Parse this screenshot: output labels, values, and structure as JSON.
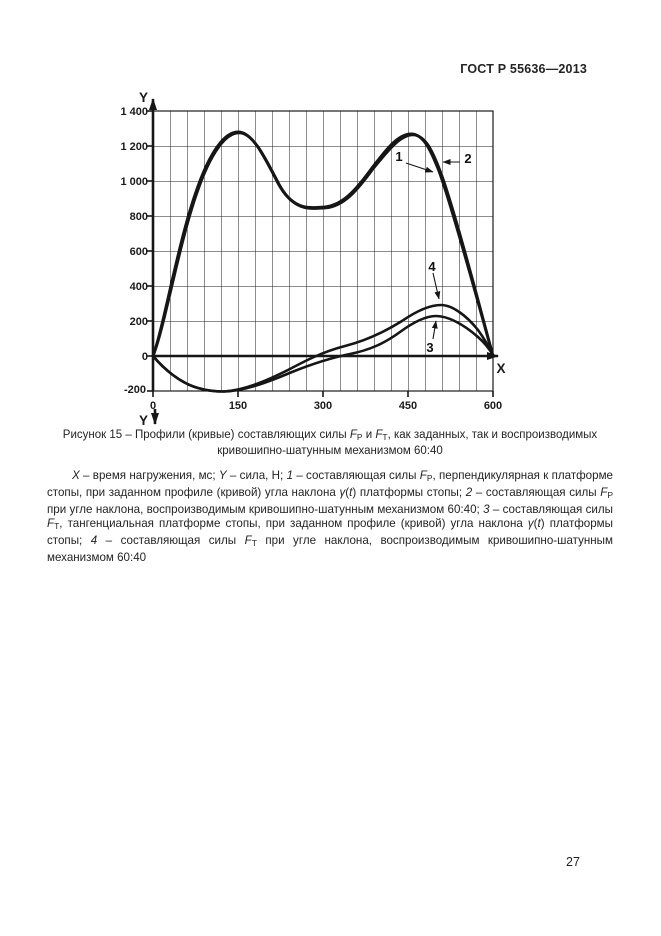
{
  "page": {
    "header": "ГОСТ Р 55636—2013",
    "page_number": "27"
  },
  "figure": {
    "y_label_top": "Y",
    "y_label_bottom": "Y",
    "x_label": "X",
    "y_ticks": [
      "1 400",
      "1 200",
      "1 000",
      "800",
      "600",
      "400",
      "200",
      "0",
      "-200"
    ],
    "x_ticks": [
      "0",
      "150",
      "300",
      "450",
      "600"
    ],
    "callouts": {
      "c1": "1",
      "c2": "2",
      "c3": "3",
      "c4": "4"
    }
  },
  "caption": [
    {
      "t": "Рисунок 15 – Профили (кривые)  составляющих силы "
    },
    {
      "t": "F",
      "i": true
    },
    {
      "t": "P",
      "sub": true
    },
    {
      "t": " и "
    },
    {
      "t": "F",
      "i": true
    },
    {
      "t": "T",
      "sub": true
    },
    {
      "t": ", как заданных, так и воспроизводимых"
    },
    {
      "br": true
    },
    {
      "t": "кривошипно-шатунным механизмом 60:40"
    }
  ],
  "legend": [
    {
      "t": "X",
      "i": true
    },
    {
      "t": " – время нагружения, мс; "
    },
    {
      "t": "Y",
      "i": true
    },
    {
      "t": " – сила, Н; "
    },
    {
      "t": "1",
      "i": true
    },
    {
      "t": " – составляющая силы "
    },
    {
      "t": "F",
      "i": true
    },
    {
      "t": "P",
      "sub": true
    },
    {
      "t": ", перпендикулярная к платформе стопы, при заданном профиле (кривой) угла наклона "
    },
    {
      "t": "γ",
      "i": true
    },
    {
      "t": "("
    },
    {
      "t": "t",
      "i": true
    },
    {
      "t": ") платформы стопы; "
    },
    {
      "t": "2",
      "i": true
    },
    {
      "t": " – составляющая силы "
    },
    {
      "t": "F",
      "i": true
    },
    {
      "t": "P",
      "sub": true
    },
    {
      "t": " при угле наклона, воспроизводимым кривошипно-шатунным механизмом 60:40; "
    },
    {
      "t": "3",
      "i": true
    },
    {
      "t": " – составляющая силы "
    },
    {
      "t": "F",
      "i": true
    },
    {
      "t": "T",
      "sub": true
    },
    {
      "t": ", тангенциальная платформе стопы, при заданном профиле (кривой) угла наклона "
    },
    {
      "t": "γ",
      "i": true
    },
    {
      "t": "("
    },
    {
      "t": "t",
      "i": true
    },
    {
      "t": ") платформы стопы; "
    },
    {
      "t": "4",
      "i": true
    },
    {
      "t": " – составляющая силы "
    },
    {
      "t": "F",
      "i": true
    },
    {
      "t": "T",
      "sub": true
    },
    {
      "t": " при угле наклона, воспроизводимым кривошипно-шатунным механизмом 60:40"
    }
  ],
  "chart_data": {
    "type": "line",
    "title": "Рисунок 15 – Профили (кривые) составляющих силы FP и FT, как заданных, так и воспроизводимых кривошипно-шатунным механизмом 60:40",
    "xlabel": "X – время нагружения, мс",
    "ylabel": "Y – сила, Н",
    "xlim": [
      0,
      600
    ],
    "ylim": [
      -200,
      1400
    ],
    "x_tick_values": [
      0,
      150,
      300,
      450,
      600
    ],
    "y_tick_values": [
      -200,
      0,
      200,
      400,
      600,
      800,
      1000,
      1200,
      1400
    ],
    "grid": {
      "visible": true,
      "x_step": 30,
      "y_step": 200
    },
    "legend_position": "callout-numbers-on-plot",
    "series": [
      {
        "name": "1 — составляющая силы FP (перпендикулярная платформе стопы) при заданном профиле угла наклона γ(t)",
        "points": [
          [
            0,
            0
          ],
          [
            50,
            590
          ],
          [
            100,
            1060
          ],
          [
            150,
            1280
          ],
          [
            200,
            1090
          ],
          [
            250,
            920
          ],
          [
            305,
            845
          ],
          [
            350,
            950
          ],
          [
            400,
            1130
          ],
          [
            455,
            1270
          ],
          [
            500,
            1100
          ],
          [
            550,
            620
          ],
          [
            600,
            0
          ]
        ]
      },
      {
        "name": "2 — составляющая силы FP при угле наклона, воспроизводимом кривошипно-шатунным механизмом 60:40",
        "points": [
          [
            0,
            0
          ],
          [
            50,
            580
          ],
          [
            100,
            1050
          ],
          [
            152,
            1275
          ],
          [
            200,
            1085
          ],
          [
            250,
            915
          ],
          [
            307,
            840
          ],
          [
            350,
            945
          ],
          [
            400,
            1120
          ],
          [
            458,
            1265
          ],
          [
            500,
            1090
          ],
          [
            550,
            610
          ],
          [
            600,
            0
          ]
        ]
      },
      {
        "name": "3 — составляющая силы FT (тангенциальная платформе стопы) при заданном профиле угла наклона γ(t)",
        "points": [
          [
            0,
            0
          ],
          [
            60,
            -150
          ],
          [
            125,
            -205
          ],
          [
            180,
            -160
          ],
          [
            240,
            -85
          ],
          [
            300,
            -40
          ],
          [
            340,
            0
          ],
          [
            400,
            135
          ],
          [
            450,
            200
          ],
          [
            500,
            230
          ],
          [
            550,
            165
          ],
          [
            600,
            0
          ]
        ]
      },
      {
        "name": "4 — составляющая силы FT при угле наклона, воспроизводимом кривошипно-шатунным механизмом 60:40",
        "points": [
          [
            0,
            0
          ],
          [
            60,
            -150
          ],
          [
            125,
            -205
          ],
          [
            180,
            -160
          ],
          [
            240,
            -75
          ],
          [
            310,
            0
          ],
          [
            400,
            200
          ],
          [
            450,
            255
          ],
          [
            508,
            290
          ],
          [
            550,
            225
          ],
          [
            600,
            0
          ]
        ]
      }
    ]
  }
}
